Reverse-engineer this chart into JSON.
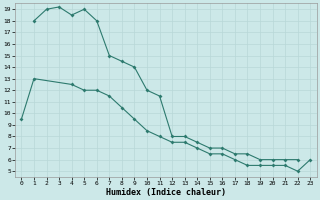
{
  "xlabel": "Humidex (Indice chaleur)",
  "bg_color": "#cce8e8",
  "line_color": "#2d7a6e",
  "grid_major_color": "#b8d8d8",
  "grid_minor_color": "#d8ecec",
  "xlim": [
    -0.5,
    23.5
  ],
  "ylim": [
    4.5,
    19.5
  ],
  "xticks": [
    0,
    1,
    2,
    3,
    4,
    5,
    6,
    7,
    8,
    9,
    10,
    11,
    12,
    13,
    14,
    15,
    16,
    17,
    18,
    19,
    20,
    21,
    22,
    23
  ],
  "yticks": [
    5,
    6,
    7,
    8,
    9,
    10,
    11,
    12,
    13,
    14,
    15,
    16,
    17,
    18,
    19
  ],
  "line1_x": [
    1,
    2,
    3,
    4,
    5,
    6,
    7,
    8,
    9,
    10,
    11,
    12,
    13,
    14,
    15,
    16,
    17,
    18,
    19,
    20,
    21,
    22
  ],
  "line1_y": [
    18,
    19,
    19.2,
    18.5,
    19,
    18,
    15,
    14.5,
    14,
    12,
    11.5,
    8,
    8,
    7.5,
    7,
    7,
    6.5,
    6.5,
    6,
    6,
    6,
    6
  ],
  "line2_x": [
    0,
    1,
    4,
    5,
    6,
    7,
    8,
    9,
    10,
    11,
    12,
    13,
    14,
    15,
    16,
    17,
    18,
    19,
    20,
    21,
    22,
    23
  ],
  "line2_y": [
    9.5,
    13,
    12.5,
    12,
    12,
    11.5,
    10.5,
    9.5,
    8.5,
    8,
    7.5,
    7.5,
    7,
    6.5,
    6.5,
    6,
    5.5,
    5.5,
    5.5,
    5.5,
    5,
    6
  ]
}
